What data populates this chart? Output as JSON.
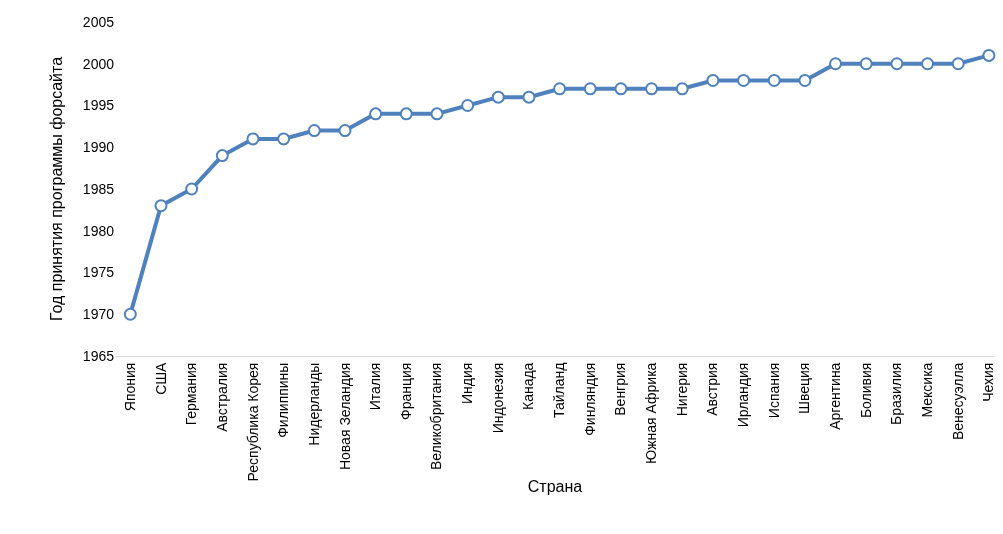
{
  "chart_data": {
    "type": "line",
    "xlabel": "Страна",
    "ylabel": "Год принятия программы форсайта",
    "categories": [
      "Япония",
      "США",
      "Германия",
      "Австралия",
      "Республика Корея",
      "Филиппины",
      "Нидерланды",
      "Новая Зеландия",
      "Италия",
      "Франция",
      "Великобритания",
      "Индия",
      "Индонезия",
      "Канада",
      "Тайланд",
      "Финляндия",
      "Венгрия",
      "Южная Африка",
      "Нигерия",
      "Австрия",
      "Ирландия",
      "Испания",
      "Швеция",
      "Аргентина",
      "Боливия",
      "Бразилия",
      "Мексика",
      "Венесуэлла",
      "Чехия"
    ],
    "series": [
      {
        "color": "#4f81bd",
        "values": [
          1970,
          1983,
          1985,
          1989,
          1991,
          1991,
          1992,
          1992,
          1994,
          1994,
          1994,
          1995,
          1996,
          1996,
          1997,
          1997,
          1997,
          1997,
          1997,
          1998,
          1998,
          1998,
          1998,
          2000,
          2000,
          2000,
          2000,
          2000,
          2001
        ]
      }
    ],
    "ylim": [
      1965,
      2005
    ],
    "yticks": [
      1965,
      1970,
      1975,
      1980,
      1985,
      1990,
      1995,
      2000,
      2005
    ],
    "grid": false,
    "legend": false,
    "marker": "circle",
    "line_style": "solid"
  }
}
